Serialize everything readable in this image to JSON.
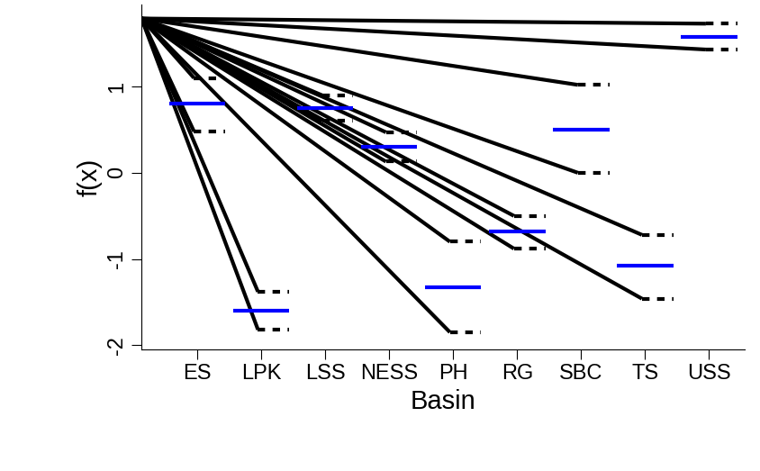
{
  "chart_data": {
    "type": "interval",
    "x_label": "Basin",
    "y_label": "f(x)",
    "categories": [
      "ES",
      "LPK",
      "LSS",
      "NESS",
      "PH",
      "RG",
      "SBC",
      "TS",
      "USS"
    ],
    "values": [
      0.8,
      -1.6,
      0.75,
      0.3,
      -1.33,
      -0.68,
      0.5,
      -1.08,
      1.58
    ],
    "upper": [
      1.1,
      -1.38,
      0.9,
      0.47,
      -0.8,
      -0.5,
      1.02,
      -0.72,
      1.73
    ],
    "lower": [
      0.48,
      -1.82,
      0.6,
      0.13,
      -1.85,
      -0.88,
      0.0,
      -1.46,
      1.43
    ],
    "color": "#0000ff",
    "interval_color": "#000000",
    "ylim": [
      -2.05,
      1.95
    ],
    "yticks": [
      -2,
      -1,
      0,
      1
    ],
    "grid": false
  }
}
